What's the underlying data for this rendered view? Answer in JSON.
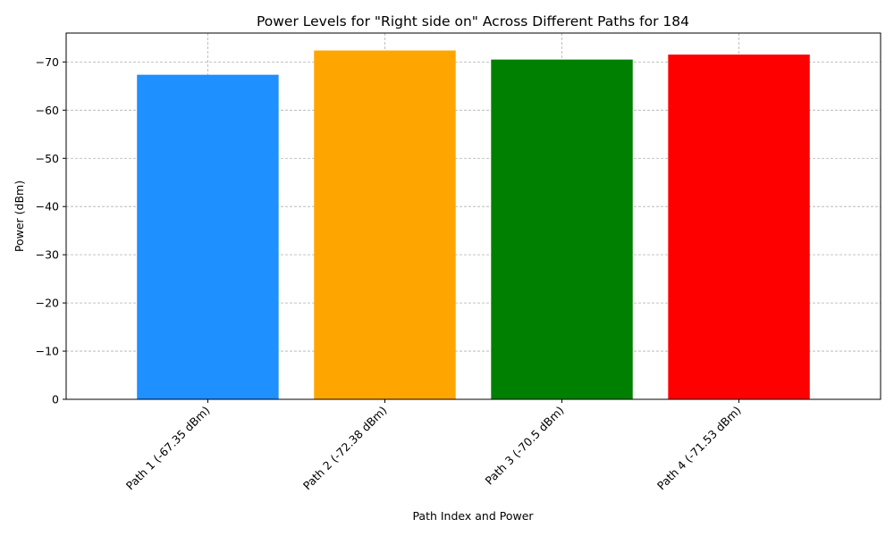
{
  "chart_data": {
    "type": "bar",
    "title": "Power Levels for \"Right side on\" Across Different Paths for 184",
    "xlabel": "Path Index and Power",
    "ylabel": "Power (dBm)",
    "categories": [
      "Path 1 (-67.35 dBm)",
      "Path 2 (-72.38 dBm)",
      "Path 3 (-70.5 dBm)",
      "Path 4 (-71.53 dBm)"
    ],
    "values": [
      -67.35,
      -72.38,
      -70.5,
      -71.53
    ],
    "colors": [
      "#1e90ff",
      "#ffa500",
      "#008000",
      "#ff0000"
    ],
    "ylim": [
      0,
      -76
    ],
    "yticks": [
      0,
      -10,
      -20,
      -30,
      -40,
      -50,
      -60,
      -70
    ],
    "ytick_labels": [
      "0",
      "−10",
      "−20",
      "−30",
      "−40",
      "−50",
      "−60",
      "−70"
    ],
    "grid": true,
    "legend": "none"
  }
}
